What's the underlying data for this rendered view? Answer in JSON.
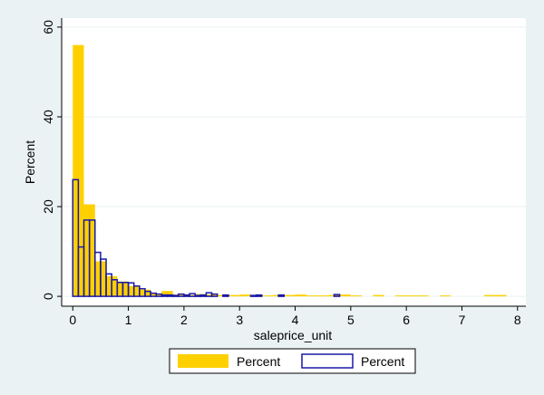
{
  "colors": {
    "outer_background": "#eaf2f3",
    "plot_background": "#ffffff",
    "grid": "#eaf2f3",
    "gold": "#ffd000",
    "navy": "#1a1aa8"
  },
  "chart_data": {
    "type": "bar",
    "subtype": "overlaid histogram",
    "title": "",
    "xlabel": "saleprice_unit",
    "ylabel": "Percent",
    "xlim": [
      -0.2,
      8.15
    ],
    "ylim": [
      -2.2,
      62
    ],
    "xticks": [
      0,
      1,
      2,
      3,
      4,
      5,
      6,
      7,
      8
    ],
    "yticks": [
      0,
      20,
      40,
      60
    ],
    "grid": "horizontal",
    "legend_position": "bottom",
    "series": [
      {
        "name": "Percent",
        "style": "filled",
        "color": "#ffd000",
        "bin_width": 0.2,
        "bins": [
          {
            "x0": 0.0,
            "value": 56.0
          },
          {
            "x0": 0.2,
            "value": 20.5
          },
          {
            "x0": 0.4,
            "value": 7.8
          },
          {
            "x0": 0.6,
            "value": 4.5
          },
          {
            "x0": 0.8,
            "value": 3.3
          },
          {
            "x0": 1.0,
            "value": 2.3
          },
          {
            "x0": 1.2,
            "value": 1.5
          },
          {
            "x0": 1.4,
            "value": 0.6
          },
          {
            "x0": 1.6,
            "value": 1.2
          },
          {
            "x0": 1.8,
            "value": 0.4
          },
          {
            "x0": 2.0,
            "value": 0.3
          },
          {
            "x0": 2.2,
            "value": 0.5
          },
          {
            "x0": 2.4,
            "value": 0.4
          },
          {
            "x0": 2.6,
            "value": 0.3
          },
          {
            "x0": 2.8,
            "value": 0.3
          },
          {
            "x0": 3.0,
            "value": 0.4
          },
          {
            "x0": 3.2,
            "value": 0.3
          },
          {
            "x0": 3.4,
            "value": 0.2
          },
          {
            "x0": 3.6,
            "value": 0.3
          },
          {
            "x0": 3.8,
            "value": 0.3
          },
          {
            "x0": 4.0,
            "value": 0.4
          },
          {
            "x0": 4.2,
            "value": 0.2
          },
          {
            "x0": 4.4,
            "value": 0.2
          },
          {
            "x0": 4.6,
            "value": 0.3
          },
          {
            "x0": 4.8,
            "value": 0.4
          },
          {
            "x0": 5.0,
            "value": 0.2
          },
          {
            "x0": 5.4,
            "value": 0.3
          },
          {
            "x0": 5.8,
            "value": 0.2
          },
          {
            "x0": 6.0,
            "value": 0.2
          },
          {
            "x0": 6.2,
            "value": 0.2
          },
          {
            "x0": 6.6,
            "value": 0.2
          },
          {
            "x0": 7.4,
            "value": 0.3
          },
          {
            "x0": 7.6,
            "value": 0.3
          }
        ]
      },
      {
        "name": "Percent",
        "style": "outline",
        "color": "#1a1aa8",
        "bin_width": 0.1,
        "bins": [
          {
            "x0": 0.0,
            "value": 26.0
          },
          {
            "x0": 0.1,
            "value": 11.0
          },
          {
            "x0": 0.2,
            "value": 17.0
          },
          {
            "x0": 0.3,
            "value": 17.0
          },
          {
            "x0": 0.4,
            "value": 9.8
          },
          {
            "x0": 0.5,
            "value": 8.3
          },
          {
            "x0": 0.6,
            "value": 5.0
          },
          {
            "x0": 0.7,
            "value": 3.7
          },
          {
            "x0": 0.8,
            "value": 3.1
          },
          {
            "x0": 0.9,
            "value": 3.1
          },
          {
            "x0": 1.0,
            "value": 3.0
          },
          {
            "x0": 1.1,
            "value": 2.3
          },
          {
            "x0": 1.2,
            "value": 1.7
          },
          {
            "x0": 1.3,
            "value": 1.1
          },
          {
            "x0": 1.4,
            "value": 0.7
          },
          {
            "x0": 1.5,
            "value": 0.5
          },
          {
            "x0": 1.6,
            "value": 0.3
          },
          {
            "x0": 1.7,
            "value": 0.3
          },
          {
            "x0": 1.8,
            "value": 0.2
          },
          {
            "x0": 1.9,
            "value": 0.5
          },
          {
            "x0": 2.0,
            "value": 0.3
          },
          {
            "x0": 2.1,
            "value": 0.6
          },
          {
            "x0": 2.2,
            "value": 0.2
          },
          {
            "x0": 2.3,
            "value": 0.3
          },
          {
            "x0": 2.4,
            "value": 0.8
          },
          {
            "x0": 2.5,
            "value": 0.5
          },
          {
            "x0": 2.7,
            "value": 0.3
          },
          {
            "x0": 3.2,
            "value": 0.2
          },
          {
            "x0": 3.3,
            "value": 0.3
          },
          {
            "x0": 3.7,
            "value": 0.3
          },
          {
            "x0": 4.7,
            "value": 0.4
          }
        ]
      }
    ],
    "legend": [
      {
        "label": "Percent",
        "style": "filled"
      },
      {
        "label": "Percent",
        "style": "outline"
      }
    ]
  }
}
